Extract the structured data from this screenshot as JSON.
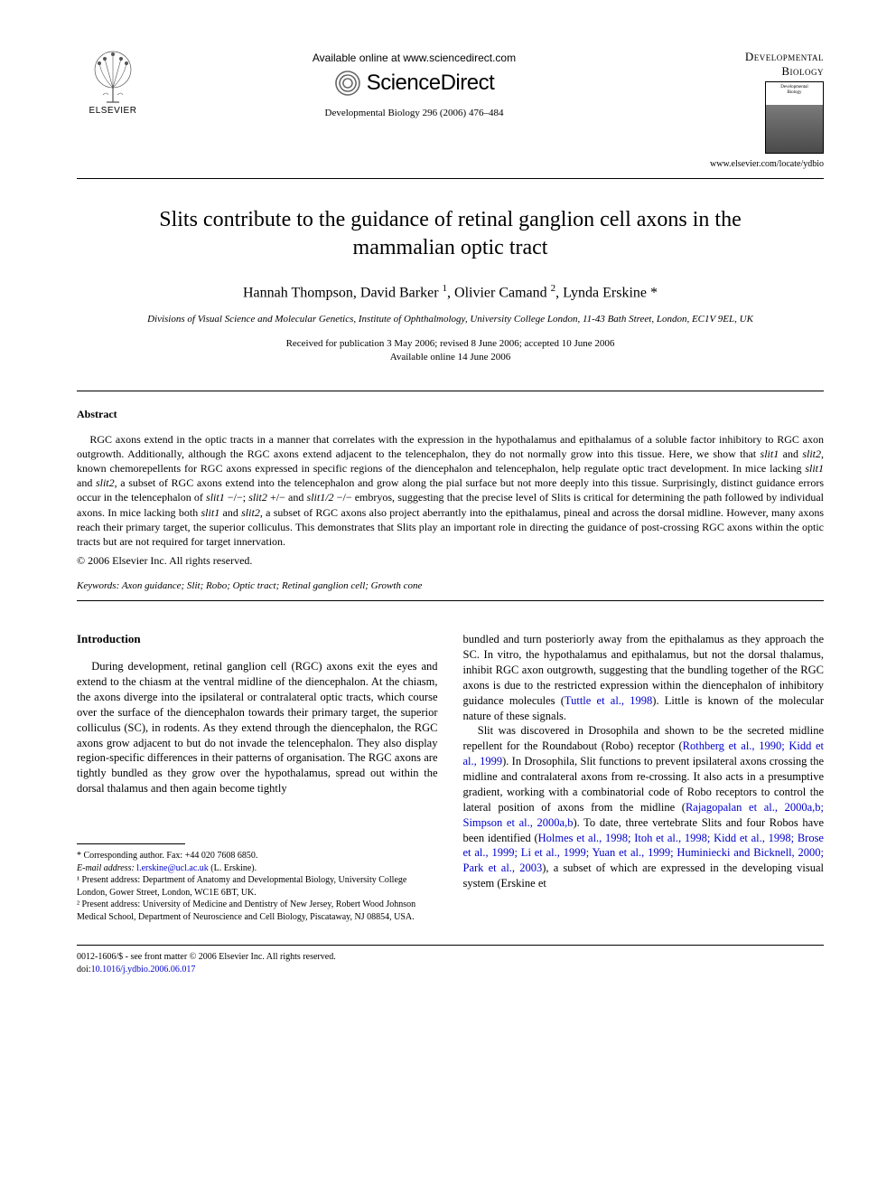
{
  "header": {
    "publisher_label": "ELSEVIER",
    "available_online": "Available online at www.sciencedirect.com",
    "sd_brand": "ScienceDirect",
    "journal_ref": "Developmental Biology 296 (2006) 476–484",
    "journal_title_line1": "Developmental",
    "journal_title_line2": "Biology",
    "journal_url": "www.elsevier.com/locate/ydbio"
  },
  "article": {
    "title": "Slits contribute to the guidance of retinal ganglion cell axons in the mammalian optic tract",
    "authors_html": "Hannah Thompson, David Barker <sup>1</sup>, Olivier Camand <sup>2</sup>, Lynda Erskine *",
    "affiliation": "Divisions of Visual Science and Molecular Genetics, Institute of Ophthalmology, University College London, 11-43 Bath Street, London, EC1V 9EL, UK",
    "received": "Received for publication 3 May 2006; revised 8 June 2006; accepted 10 June 2006",
    "available": "Available online 14 June 2006"
  },
  "abstract": {
    "heading": "Abstract",
    "body": "RGC axons extend in the optic tracts in a manner that correlates with the expression in the hypothalamus and epithalamus of a soluble factor inhibitory to RGC axon outgrowth. Additionally, although the RGC axons extend adjacent to the telencephalon, they do not normally grow into this tissue. Here, we show that slit1 and slit2, known chemorepellents for RGC axons expressed in specific regions of the diencephalon and telencephalon, help regulate optic tract development. In mice lacking slit1 and slit2, a subset of RGC axons extend into the telencephalon and grow along the pial surface but not more deeply into this tissue. Surprisingly, distinct guidance errors occur in the telencephalon of slit1 −/−; slit2 +/− and slit1/2 −/− embryos, suggesting that the precise level of Slits is critical for determining the path followed by individual axons. In mice lacking both slit1 and slit2, a subset of RGC axons also project aberrantly into the epithalamus, pineal and across the dorsal midline. However, many axons reach their primary target, the superior colliculus. This demonstrates that Slits play an important role in directing the guidance of post-crossing RGC axons within the optic tracts but are not required for target innervation.",
    "copyright": "© 2006 Elsevier Inc. All rights reserved.",
    "keywords_label": "Keywords:",
    "keywords": " Axon guidance; Slit; Robo; Optic tract; Retinal ganglion cell; Growth cone"
  },
  "intro": {
    "heading": "Introduction",
    "col1_para": "During development, retinal ganglion cell (RGC) axons exit the eyes and extend to the chiasm at the ventral midline of the diencephalon. At the chiasm, the axons diverge into the ipsilateral or contralateral optic tracts, which course over the surface of the diencephalon towards their primary target, the superior colliculus (SC), in rodents. As they extend through the diencephalon, the RGC axons grow adjacent to but do not invade the telencephalon. They also display region-specific differences in their patterns of organisation. The RGC axons are tightly bundled as they grow over the hypothalamus, spread out within the dorsal thalamus and then again become tightly",
    "col2_para1": "bundled and turn posteriorly away from the epithalamus as they approach the SC. In vitro, the hypothalamus and epithalamus, but not the dorsal thalamus, inhibit RGC axon outgrowth, suggesting that the bundling together of the RGC axons is due to the restricted expression within the diencephalon of inhibitory guidance molecules (Tuttle et al., 1998). Little is known of the molecular nature of these signals.",
    "col2_para2": "Slit was discovered in Drosophila and shown to be the secreted midline repellent for the Roundabout (Robo) receptor (Rothberg et al., 1990; Kidd et al., 1999). In Drosophila, Slit functions to prevent ipsilateral axons crossing the midline and contralateral axons from re-crossing. It also acts in a presumptive gradient, working with a combinatorial code of Robo receptors to control the lateral position of axons from the midline (Rajagopalan et al., 2000a,b; Simpson et al., 2000a,b). To date, three vertebrate Slits and four Robos have been identified (Holmes et al., 1998; Itoh et al., 1998; Kidd et al., 1998; Brose et al., 1999; Li et al., 1999; Yuan et al., 1999; Huminiecki and Bicknell, 2000; Park et al., 2003), a subset of which are expressed in the developing visual system (Erskine et"
  },
  "footnotes": {
    "corr": "* Corresponding author. Fax: +44 020 7608 6850.",
    "email_label": "E-mail address:",
    "email": "l.erskine@ucl.ac.uk",
    "email_suffix": " (L. Erskine).",
    "fn1": "¹ Present address: Department of Anatomy and Developmental Biology, University College London, Gower Street, London, WC1E 6BT, UK.",
    "fn2": "² Present address: University of Medicine and Dentistry of New Jersey, Robert Wood Johnson Medical School, Department of Neuroscience and Cell Biology, Piscataway, NJ 08854, USA."
  },
  "footer": {
    "issn": "0012-1606/$ - see front matter © 2006 Elsevier Inc. All rights reserved.",
    "doi_label": "doi:",
    "doi": "10.1016/j.ydbio.2006.06.017"
  },
  "colors": {
    "link": "#0000cc",
    "text": "#000000",
    "bg": "#ffffff"
  }
}
